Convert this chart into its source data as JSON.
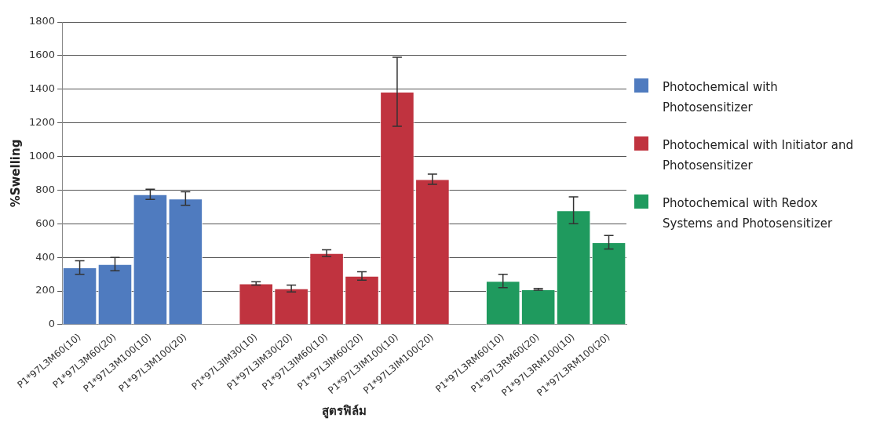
{
  "chart_data": {
    "type": "bar",
    "xlabel": "สูตรฟิล์ม",
    "ylabel": "%Swelling",
    "categories": [
      "P1*97L3M60(10)",
      "P1*97L3M60(20)",
      "P1*97L3M100(10)",
      "P1*97L3M100(20)",
      null,
      "P1*97L3IM30(10)",
      "P1*97L3IM30(20)",
      "P1*97L3IM60(10)",
      "P1*97L3IM60(20)",
      "P1*97L3IM100(10)",
      "P1*97L3IM100(20)",
      null,
      "P1*97L3RM60(10)",
      "P1*97L3RM60(20)",
      "P1*97L3RM100(10)",
      "P1*97L3RM100(20)"
    ],
    "series": [
      {
        "name": "Photochemical with Photosensitizer",
        "color": "#4f7bbf",
        "values": [
          340,
          360,
          775,
          750,
          null,
          null,
          null,
          null,
          null,
          null,
          null,
          null,
          null,
          null,
          null,
          null
        ],
        "errors": [
          40,
          40,
          30,
          40,
          null,
          null,
          null,
          null,
          null,
          null,
          null,
          null,
          null,
          null,
          null,
          null
        ]
      },
      {
        "name": "Photochemical with Initiator and Photosensitizer",
        "color": "#c0333f",
        "values": [
          null,
          null,
          null,
          null,
          null,
          245,
          215,
          425,
          290,
          1385,
          865,
          null,
          null,
          null,
          null,
          null
        ],
        "errors": [
          null,
          null,
          null,
          null,
          null,
          10,
          20,
          20,
          25,
          205,
          30,
          null,
          null,
          null,
          null,
          null
        ]
      },
      {
        "name": "Photochemical with Redox Systems and Photosensitizer",
        "color": "#1f9a5e",
        "values": [
          null,
          null,
          null,
          null,
          null,
          null,
          null,
          null,
          null,
          null,
          null,
          null,
          260,
          210,
          680,
          490
        ],
        "errors": [
          null,
          null,
          null,
          null,
          null,
          null,
          null,
          null,
          null,
          null,
          null,
          null,
          40,
          5,
          80,
          40
        ]
      }
    ],
    "ylim": [
      0,
      1800
    ],
    "yticks": [
      0,
      200,
      400,
      600,
      800,
      1000,
      1200,
      1400,
      1600,
      1800
    ],
    "grid": "y",
    "legend": "right"
  }
}
